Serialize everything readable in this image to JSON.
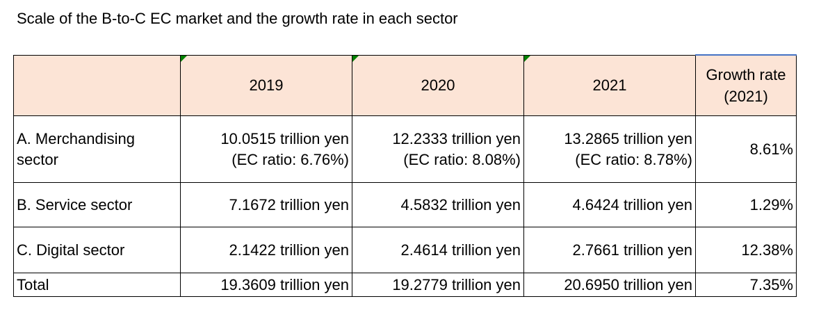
{
  "title": "Scale of the B-to-C EC market and the growth rate in each sector",
  "header": {
    "col0": "",
    "y2019": "2019",
    "y2020": "2020",
    "y2021": "2021",
    "growth_line1": "Growth rate",
    "growth_line2": "(2021)"
  },
  "rows": [
    {
      "label_line1": "A. Merchandising",
      "label_line2": "sector",
      "v2019": "10.0515 trillion yen",
      "r2019": "(EC ratio: 6.76%)",
      "v2020": "12.2333 trillion yen",
      "r2020": "(EC ratio: 8.08%)",
      "v2021": "13.2865 trillion yen",
      "r2021": "(EC ratio: 8.78%)",
      "growth": "8.61%"
    },
    {
      "label": "B. Service sector",
      "v2019": "7.1672 trillion yen",
      "v2020": "4.5832 trillion yen",
      "v2021": "4.6424 trillion yen",
      "growth": "1.29%"
    },
    {
      "label": "C. Digital sector",
      "v2019": "2.1422 trillion yen",
      "v2020": "2.4614 trillion yen",
      "v2021": "2.7661 trillion yen",
      "growth": "12.38%"
    },
    {
      "label": "Total",
      "v2019": "19.3609 trillion yen",
      "v2020": "19.2779 trillion yen",
      "v2021": "20.6950 trillion yen",
      "growth": "7.35%"
    }
  ],
  "colors": {
    "header_bg": "#fce4d6",
    "marker": "#008000",
    "accent_border": "#4472c4"
  }
}
